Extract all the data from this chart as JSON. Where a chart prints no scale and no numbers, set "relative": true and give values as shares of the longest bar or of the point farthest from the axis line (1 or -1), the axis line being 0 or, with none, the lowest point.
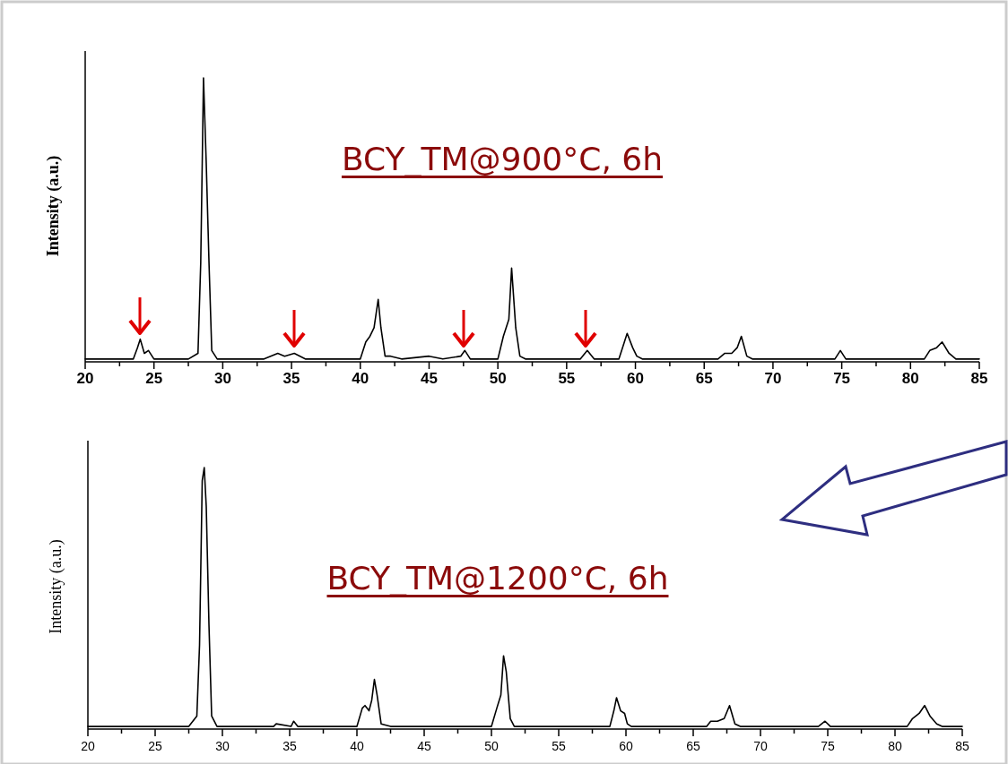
{
  "chart_data": [
    {
      "type": "line",
      "title": "BCY_TM@900°C, 6h",
      "ylabel": "Intensity (a.u.)",
      "relative": true,
      "color": "#000000",
      "xlim": [
        20,
        85
      ],
      "xticks": [
        20,
        {
          "value": 22.5,
          "label": null
        },
        25,
        {
          "value": 27.5,
          "label": null
        },
        30,
        {
          "value": 32.5,
          "label": null
        },
        35,
        {
          "value": 37.5,
          "label": null
        },
        40,
        {
          "value": 42.5,
          "label": null
        },
        45,
        {
          "value": 47.5,
          "label": null
        },
        50,
        {
          "value": 52.5,
          "label": null
        },
        55,
        {
          "value": 57.5,
          "label": null
        },
        60,
        {
          "value": 62.5,
          "label": null
        },
        65,
        {
          "value": 67.5,
          "label": null
        },
        70,
        {
          "value": 72.5,
          "label": null
        },
        75,
        {
          "value": 77.5,
          "label": null
        },
        80,
        {
          "value": 82.5,
          "label": null
        },
        85
      ],
      "x": [
        20,
        22,
        23.5,
        23.8,
        24.0,
        24.3,
        24.6,
        25,
        27.5,
        28.2,
        28.4,
        28.6,
        28.8,
        29.0,
        29.2,
        29.6,
        33,
        34,
        34.5,
        35.2,
        36,
        40,
        40.4,
        40.7,
        41.0,
        41.3,
        41.5,
        41.8,
        42.2,
        43,
        45,
        46,
        47.3,
        47.6,
        48,
        50,
        50.4,
        50.8,
        51.0,
        51.3,
        51.6,
        52,
        56,
        56.5,
        57,
        58.8,
        59.2,
        59.4,
        59.8,
        60.1,
        60.5,
        66,
        66.5,
        67,
        67.4,
        67.7,
        68.1,
        68.5,
        74.5,
        74.9,
        75.3,
        77,
        81,
        81.4,
        81.9,
        82.3,
        82.8,
        83.3,
        85
      ],
      "values": [
        0.01,
        0.01,
        0.01,
        0.05,
        0.08,
        0.03,
        0.04,
        0.01,
        0.01,
        0.03,
        0.35,
        1.0,
        0.7,
        0.35,
        0.04,
        0.01,
        0.01,
        0.03,
        0.02,
        0.03,
        0.01,
        0.01,
        0.07,
        0.09,
        0.12,
        0.22,
        0.12,
        0.02,
        0.02,
        0.01,
        0.02,
        0.01,
        0.02,
        0.04,
        0.01,
        0.01,
        0.09,
        0.15,
        0.33,
        0.12,
        0.02,
        0.01,
        0.01,
        0.04,
        0.01,
        0.01,
        0.07,
        0.1,
        0.05,
        0.02,
        0.01,
        0.01,
        0.03,
        0.03,
        0.05,
        0.09,
        0.02,
        0.01,
        0.01,
        0.04,
        0.01,
        0.01,
        0.01,
        0.04,
        0.05,
        0.07,
        0.03,
        0.01,
        0.01
      ]
    },
    {
      "type": "line",
      "title": "BCY_TM@1200°C, 6h",
      "ylabel": "Intensity (a.u.)",
      "relative": true,
      "color": "#000000",
      "xlim": [
        20,
        85
      ],
      "xticks": [
        20,
        {
          "value": 22.5,
          "label": null
        },
        25,
        {
          "value": 27.5,
          "label": null
        },
        30,
        {
          "value": 32.5,
          "label": null
        },
        35,
        {
          "value": 37.5,
          "label": null
        },
        40,
        {
          "value": 42.5,
          "label": null
        },
        45,
        {
          "value": 47.5,
          "label": null
        },
        50,
        {
          "value": 52.5,
          "label": null
        },
        55,
        {
          "value": 57.5,
          "label": null
        },
        60,
        {
          "value": 62.5,
          "label": null
        },
        65,
        {
          "value": 67.5,
          "label": null
        },
        70,
        {
          "value": 72.5,
          "label": null
        },
        75,
        {
          "value": 77.5,
          "label": null
        },
        80,
        {
          "value": 82.5,
          "label": null
        },
        85
      ],
      "x": [
        20,
        25,
        27.5,
        28.1,
        28.3,
        28.5,
        28.65,
        28.8,
        29.0,
        29.2,
        29.6,
        33.8,
        34,
        35.1,
        35.3,
        35.6,
        40,
        40.4,
        40.6,
        40.9,
        41.1,
        41.3,
        41.5,
        41.8,
        42.5,
        50,
        50.4,
        50.7,
        50.9,
        51.1,
        51.4,
        51.7,
        52.5,
        58.8,
        59.1,
        59.3,
        59.6,
        59.9,
        60.1,
        60.4,
        66,
        66.3,
        66.8,
        67.3,
        67.7,
        68.1,
        68.5,
        74.3,
        74.8,
        75.2,
        80.9,
        81.3,
        81.8,
        82.2,
        82.6,
        83.1,
        83.5,
        85
      ],
      "values": [
        0.01,
        0.01,
        0.01,
        0.05,
        0.32,
        0.95,
        1.0,
        0.85,
        0.4,
        0.05,
        0.01,
        0.01,
        0.02,
        0.01,
        0.03,
        0.01,
        0.01,
        0.08,
        0.09,
        0.07,
        0.11,
        0.19,
        0.13,
        0.02,
        0.01,
        0.01,
        0.08,
        0.13,
        0.28,
        0.22,
        0.04,
        0.01,
        0.01,
        0.01,
        0.07,
        0.12,
        0.07,
        0.06,
        0.02,
        0.01,
        0.01,
        0.03,
        0.03,
        0.04,
        0.09,
        0.02,
        0.01,
        0.01,
        0.03,
        0.01,
        0.01,
        0.04,
        0.06,
        0.09,
        0.05,
        0.02,
        0.01,
        0.01
      ]
    }
  ]
}
